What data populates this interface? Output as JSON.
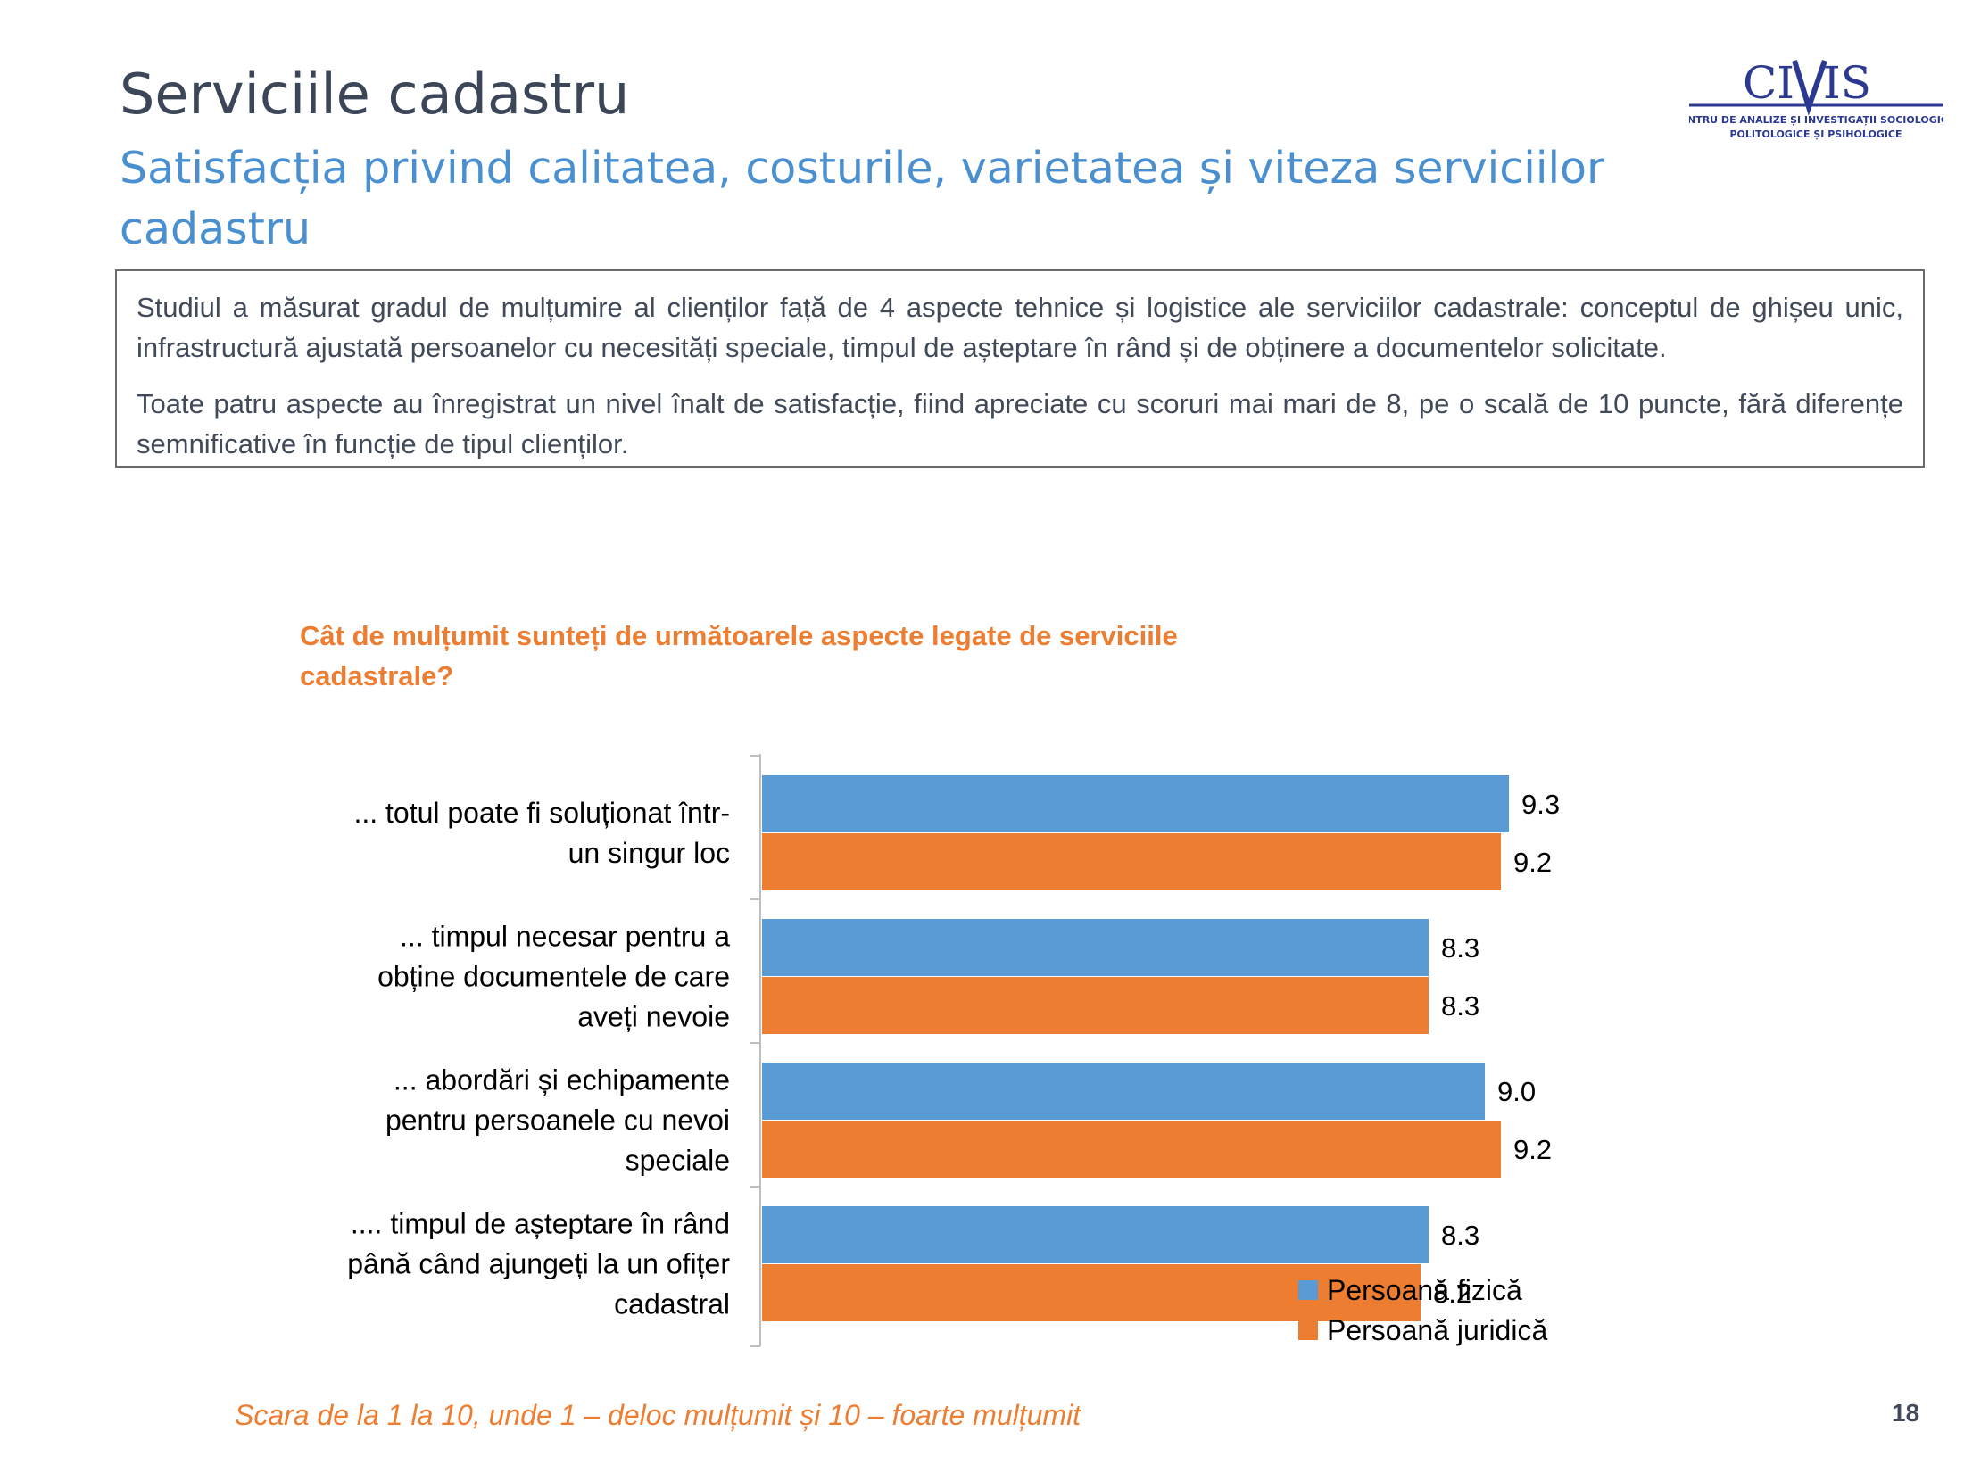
{
  "slide": {
    "title": "Serviciile cadastru",
    "subtitle": "Satisfacția privind calitatea, costurile, varietatea și viteza serviciilor cadastru",
    "summary_paragraphs": [
      "Studiul a măsurat gradul de mulțumire al clienților față de 4 aspecte tehnice și logistice ale serviciilor cadastrale: conceptul de ghișeu unic, infrastructură ajustată persoanelor cu necesități speciale, timpul de așteptare în rând și de obținere a documentelor solicitate.",
      "Toate patru aspecte au înregistrat un nivel înalt de satisfacție, fiind apreciate cu scoruri mai mari de 8, pe o scală de 10 puncte, fără diferențe semnificative în funcție de tipul clienților."
    ],
    "footnote": "Scara de la 1 la 10, unde 1 – deloc mulțumit și 10 – foarte mulțumit",
    "page_number": "18",
    "logo": {
      "name": "CIVIS",
      "tagline_line1": "CENTRU DE ANALIZE ȘI INVESTIGAȚII SOCIOLOGICE,",
      "tagline_line2": "POLITOLOGICE ȘI PSIHOLOGICE"
    }
  },
  "chart_data": {
    "type": "bar",
    "orientation": "horizontal",
    "title": "Cât de mulțumit sunteți de următoarele aspecte legate de serviciile cadastrale?",
    "categories": [
      [
        "...    totul poate fi soluționat într-",
        "un singur loc"
      ],
      [
        "...    timpul necesar pentru a",
        "obține documentele de care",
        "aveți nevoie"
      ],
      [
        "...    abordări și echipamente",
        "pentru persoanele cu nevoi",
        "speciale"
      ],
      [
        "....    timpul de așteptare în rând",
        "până când ajungeți la un ofițer",
        "cadastral"
      ]
    ],
    "series": [
      {
        "name": "Persoană fizică",
        "color": "#5b9bd5",
        "values": [
          9.3,
          8.3,
          9.0,
          8.3
        ]
      },
      {
        "name": "Persoană juridică",
        "color": "#ed7d31",
        "values": [
          9.2,
          8.3,
          9.2,
          8.2
        ]
      }
    ],
    "xlim": [
      0,
      10
    ],
    "axis_visible": false,
    "grid": false,
    "data_labels": true,
    "legend_position": "bottom-right"
  }
}
